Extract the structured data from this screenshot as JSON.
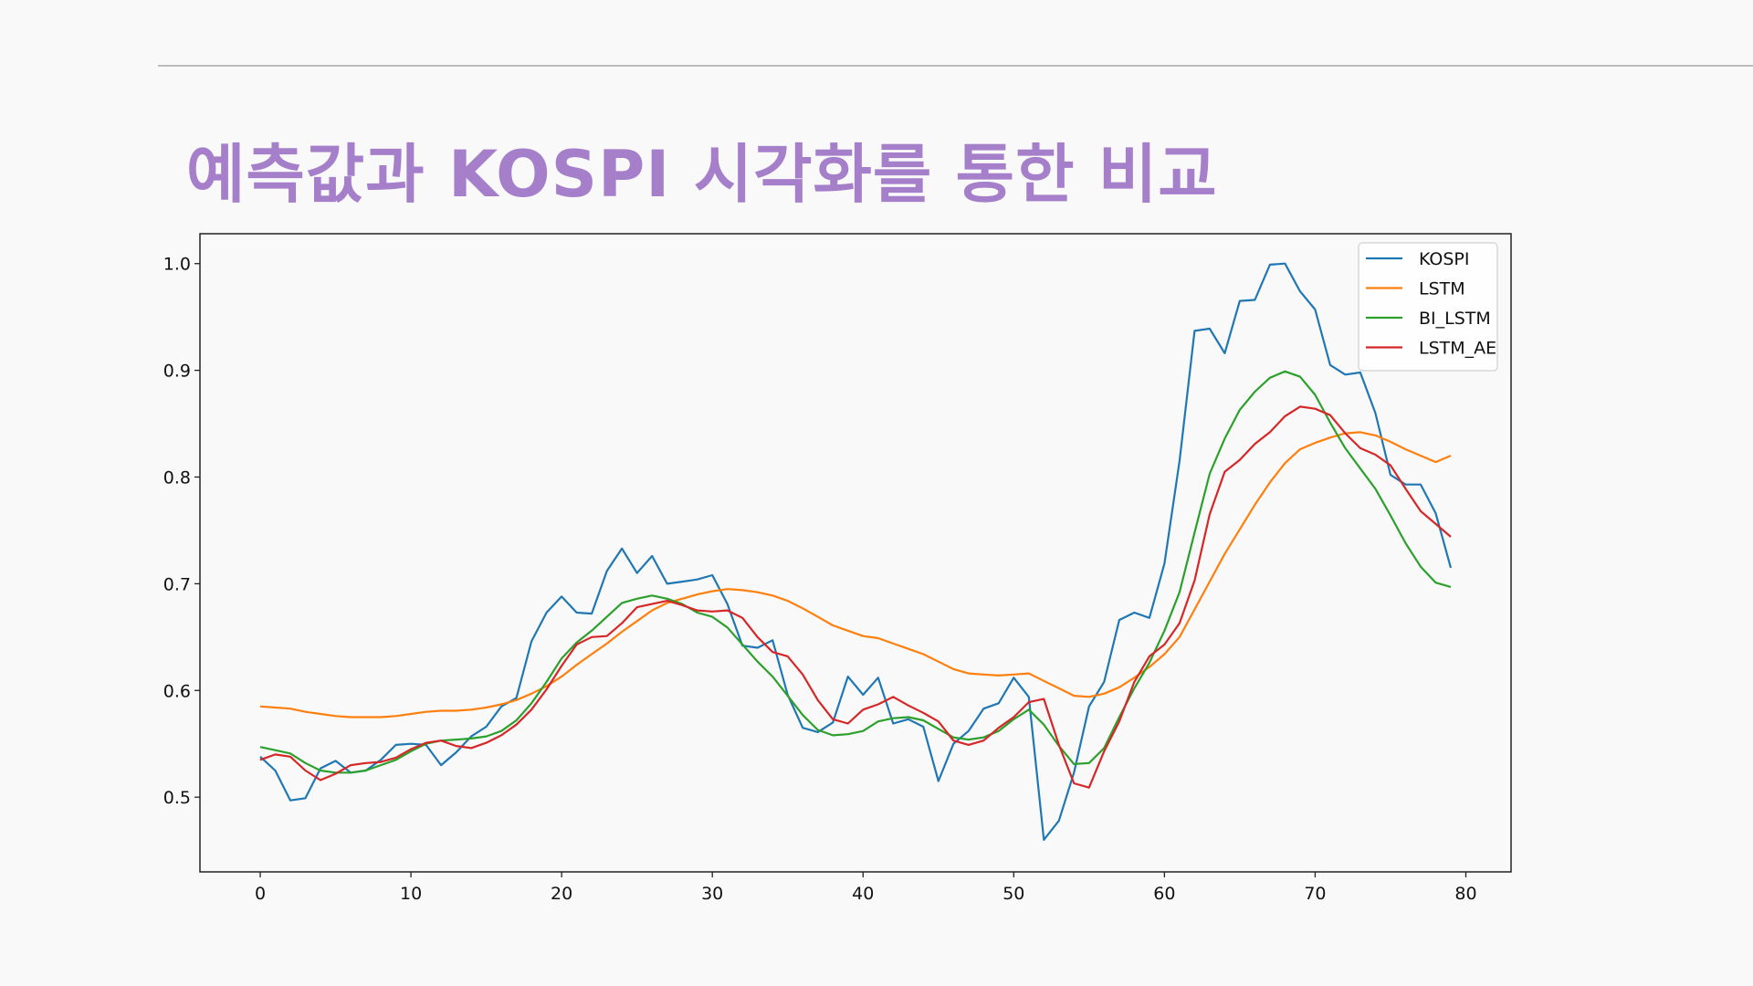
{
  "slide": {
    "title": "예측값과 KOSPI 시각화를 통한 비교"
  },
  "chart_data": {
    "type": "line",
    "xlim": [
      -4,
      83
    ],
    "ylim": [
      0.43,
      1.028
    ],
    "xticks": [
      0,
      10,
      20,
      30,
      40,
      50,
      60,
      70,
      80
    ],
    "yticks": [
      0.5,
      0.6,
      0.7,
      0.8,
      0.9,
      1.0
    ],
    "xtick_labels": [
      "0",
      "10",
      "20",
      "30",
      "40",
      "50",
      "60",
      "70",
      "80"
    ],
    "ytick_labels": [
      "0.5",
      "0.6",
      "0.7",
      "0.8",
      "0.9",
      "1.0"
    ],
    "grid": false,
    "legend_position": "top-right",
    "x": [
      0,
      1,
      2,
      3,
      4,
      5,
      6,
      7,
      8,
      9,
      10,
      11,
      12,
      13,
      14,
      15,
      16,
      17,
      18,
      19,
      20,
      21,
      22,
      23,
      24,
      25,
      26,
      27,
      28,
      29,
      30,
      31,
      32,
      33,
      34,
      35,
      36,
      37,
      38,
      39,
      40,
      41,
      42,
      43,
      44,
      45,
      46,
      47,
      48,
      49,
      50,
      51,
      52,
      53,
      54,
      55,
      56,
      57,
      58,
      59,
      60,
      61,
      62,
      63,
      64,
      65,
      66,
      67,
      68,
      69,
      70,
      71,
      72,
      73,
      74,
      75,
      76,
      77,
      78,
      79
    ],
    "series": [
      {
        "name": "KOSPI",
        "color": "#1f77b4",
        "values": [
          0.538,
          0.525,
          0.497,
          0.499,
          0.527,
          0.534,
          0.523,
          0.525,
          0.535,
          0.549,
          0.55,
          0.549,
          0.53,
          0.542,
          0.557,
          0.566,
          0.585,
          0.593,
          0.646,
          0.673,
          0.688,
          0.673,
          0.672,
          0.712,
          0.733,
          0.71,
          0.726,
          0.7,
          0.702,
          0.704,
          0.708,
          0.681,
          0.642,
          0.64,
          0.647,
          0.596,
          0.565,
          0.561,
          0.57,
          0.613,
          0.596,
          0.612,
          0.569,
          0.573,
          0.566,
          0.515,
          0.55,
          0.562,
          0.583,
          0.588,
          0.612,
          0.594,
          0.46,
          0.478,
          0.523,
          0.585,
          0.608,
          0.666,
          0.673,
          0.668,
          0.719,
          0.815,
          0.937,
          0.939,
          0.916,
          0.965,
          0.966,
          0.999,
          1.0,
          0.974,
          0.957,
          0.905,
          0.896,
          0.898,
          0.86,
          0.802,
          0.793,
          0.793,
          0.766,
          0.715
        ]
      },
      {
        "name": "LSTM",
        "color": "#ff7f0e",
        "values": [
          0.585,
          0.584,
          0.583,
          0.58,
          0.578,
          0.576,
          0.575,
          0.575,
          0.575,
          0.576,
          0.578,
          0.58,
          0.581,
          0.581,
          0.582,
          0.584,
          0.587,
          0.591,
          0.597,
          0.604,
          0.613,
          0.624,
          0.634,
          0.644,
          0.655,
          0.665,
          0.675,
          0.682,
          0.686,
          0.69,
          0.693,
          0.695,
          0.694,
          0.692,
          0.689,
          0.684,
          0.677,
          0.669,
          0.661,
          0.656,
          0.651,
          0.649,
          0.644,
          0.639,
          0.634,
          0.627,
          0.62,
          0.616,
          0.615,
          0.614,
          0.615,
          0.616,
          0.609,
          0.602,
          0.595,
          0.594,
          0.597,
          0.603,
          0.612,
          0.622,
          0.634,
          0.65,
          0.676,
          0.702,
          0.728,
          0.751,
          0.774,
          0.795,
          0.813,
          0.826,
          0.832,
          0.837,
          0.841,
          0.842,
          0.839,
          0.833,
          0.826,
          0.82,
          0.814,
          0.82
        ]
      },
      {
        "name": "BI_LSTM",
        "color": "#2ca02c",
        "values": [
          0.547,
          0.544,
          0.541,
          0.532,
          0.525,
          0.523,
          0.523,
          0.525,
          0.53,
          0.535,
          0.543,
          0.55,
          0.553,
          0.554,
          0.555,
          0.557,
          0.562,
          0.572,
          0.588,
          0.608,
          0.63,
          0.645,
          0.656,
          0.669,
          0.682,
          0.686,
          0.689,
          0.686,
          0.681,
          0.673,
          0.669,
          0.659,
          0.643,
          0.627,
          0.613,
          0.595,
          0.577,
          0.563,
          0.558,
          0.559,
          0.562,
          0.571,
          0.574,
          0.575,
          0.572,
          0.564,
          0.556,
          0.554,
          0.556,
          0.562,
          0.573,
          0.582,
          0.568,
          0.548,
          0.531,
          0.532,
          0.546,
          0.575,
          0.602,
          0.626,
          0.656,
          0.692,
          0.748,
          0.803,
          0.836,
          0.863,
          0.88,
          0.893,
          0.899,
          0.894,
          0.877,
          0.851,
          0.827,
          0.808,
          0.789,
          0.764,
          0.738,
          0.716,
          0.701,
          0.697
        ]
      },
      {
        "name": "LSTM_AE",
        "color": "#d62728",
        "values": [
          0.535,
          0.54,
          0.538,
          0.525,
          0.516,
          0.522,
          0.53,
          0.532,
          0.533,
          0.537,
          0.545,
          0.551,
          0.553,
          0.548,
          0.546,
          0.551,
          0.558,
          0.568,
          0.582,
          0.601,
          0.623,
          0.643,
          0.65,
          0.651,
          0.663,
          0.678,
          0.681,
          0.684,
          0.68,
          0.675,
          0.674,
          0.675,
          0.668,
          0.65,
          0.636,
          0.632,
          0.615,
          0.591,
          0.573,
          0.569,
          0.582,
          0.587,
          0.594,
          0.586,
          0.579,
          0.571,
          0.553,
          0.549,
          0.553,
          0.565,
          0.575,
          0.589,
          0.592,
          0.549,
          0.513,
          0.509,
          0.543,
          0.571,
          0.608,
          0.632,
          0.643,
          0.663,
          0.703,
          0.765,
          0.805,
          0.816,
          0.831,
          0.842,
          0.857,
          0.866,
          0.864,
          0.858,
          0.841,
          0.827,
          0.821,
          0.811,
          0.789,
          0.768,
          0.756,
          0.744
        ]
      }
    ]
  }
}
